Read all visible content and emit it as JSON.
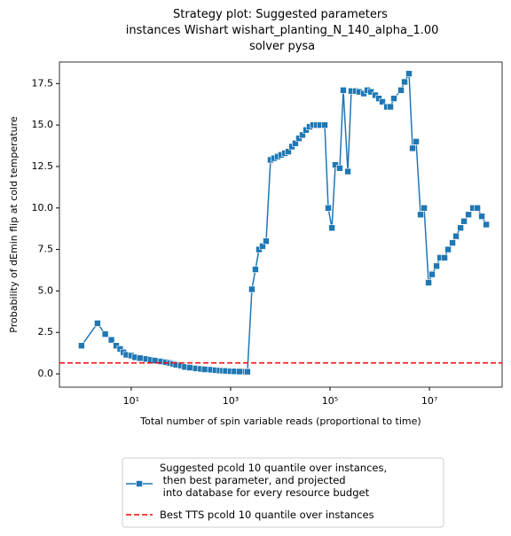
{
  "chart_data": {
    "type": "line",
    "title": "Strategy plot: Suggested parameters\n instances Wishart wishart_planting_N_140_alpha_1.00\n solver pysa",
    "xlabel": "Total number of spin variable reads (proportional to time)",
    "ylabel": "Probability of dEmin flip at cold temperature",
    "xscale": "log",
    "xlim": [
      0.36,
      290000000
    ],
    "xticks": [
      {
        "value": 10,
        "label": "10¹"
      },
      {
        "value": 1000,
        "label": "10³"
      },
      {
        "value": 100000,
        "label": "10⁵"
      },
      {
        "value": 10000000,
        "label": "10⁷"
      }
    ],
    "ylim": [
      -0.8,
      18.8
    ],
    "yticks": [
      {
        "value": 0,
        "label": "0.0"
      },
      2.5,
      {
        "value": 5,
        "label": "5.0"
      },
      7.5,
      {
        "value": 10,
        "label": "10.0"
      },
      12.5,
      {
        "value": 15,
        "label": "15.0"
      },
      17.5
    ],
    "legend": "lower center",
    "x": [
      1,
      2.1,
      3,
      4,
      5,
      6,
      7,
      8,
      10,
      12,
      15,
      20,
      25,
      30,
      40,
      50,
      60,
      70,
      80,
      100,
      120,
      150,
      200,
      250,
      300,
      400,
      500,
      600,
      700,
      800,
      1000,
      1200,
      1500,
      2000,
      2180,
      2680,
      3160,
      3730,
      4390,
      5180,
      6360,
      7500,
      8840,
      10400,
      12300,
      14500,
      17100,
      20100,
      23700,
      27900,
      33000,
      38800,
      45800,
      54000,
      63600,
      78200,
      92100,
      109000,
      128000,
      157000,
      185000,
      228000,
      268000,
      330000,
      388000,
      477000,
      562000,
      663000,
      814000,
      960000,
      1130000,
      1390000,
      1640000,
      1930000,
      2680000,
      3160000,
      3880000,
      4580000,
      5400000,
      6630000,
      7820000,
      9600000,
      11300000,
      13900000,
      16400000,
      20100000,
      23700000,
      29100000,
      34300000,
      42200000,
      49700000,
      61100000,
      75000000,
      92100000,
      113000000,
      139000000
    ],
    "series": [
      {
        "name": "Suggested pcold 10 quantile over instances,\n then best parameter, and projected\n into database for every resource budget",
        "color": "#1f77b4",
        "marker": "square",
        "values": [
          1.7,
          3.05,
          2.4,
          2.05,
          1.7,
          1.5,
          1.3,
          1.15,
          1.1,
          1.0,
          0.95,
          0.9,
          0.85,
          0.8,
          0.75,
          0.7,
          0.65,
          0.6,
          0.55,
          0.5,
          0.42,
          0.38,
          0.33,
          0.3,
          0.27,
          0.25,
          0.22,
          0.2,
          0.19,
          0.18,
          0.16,
          0.15,
          0.14,
          0.14,
          0.13,
          5.1,
          6.3,
          7.5,
          7.7,
          8.0,
          12.9,
          13.0,
          13.1,
          13.2,
          13.3,
          13.4,
          13.7,
          13.9,
          14.2,
          14.4,
          14.7,
          14.9,
          15.0,
          15.0,
          15.0,
          15.0,
          10.0,
          8.8,
          12.6,
          12.4,
          17.1,
          12.2,
          17.05,
          17.05,
          17.0,
          16.9,
          17.1,
          17.0,
          16.8,
          16.6,
          16.4,
          16.1,
          16.1,
          16.6,
          17.1,
          17.6,
          18.1,
          13.6,
          14.0,
          9.6,
          10.0,
          5.5,
          6.0,
          6.5,
          7.0,
          7.0,
          7.5,
          7.9,
          8.3,
          8.8,
          9.2,
          9.6,
          10.0,
          10.0,
          9.5,
          9.0
        ]
      }
    ],
    "hline": {
      "name": "Best TTS pcold 10 quantile over instances",
      "value": 0.66,
      "color": "#ff0000",
      "style": "dashed"
    }
  }
}
